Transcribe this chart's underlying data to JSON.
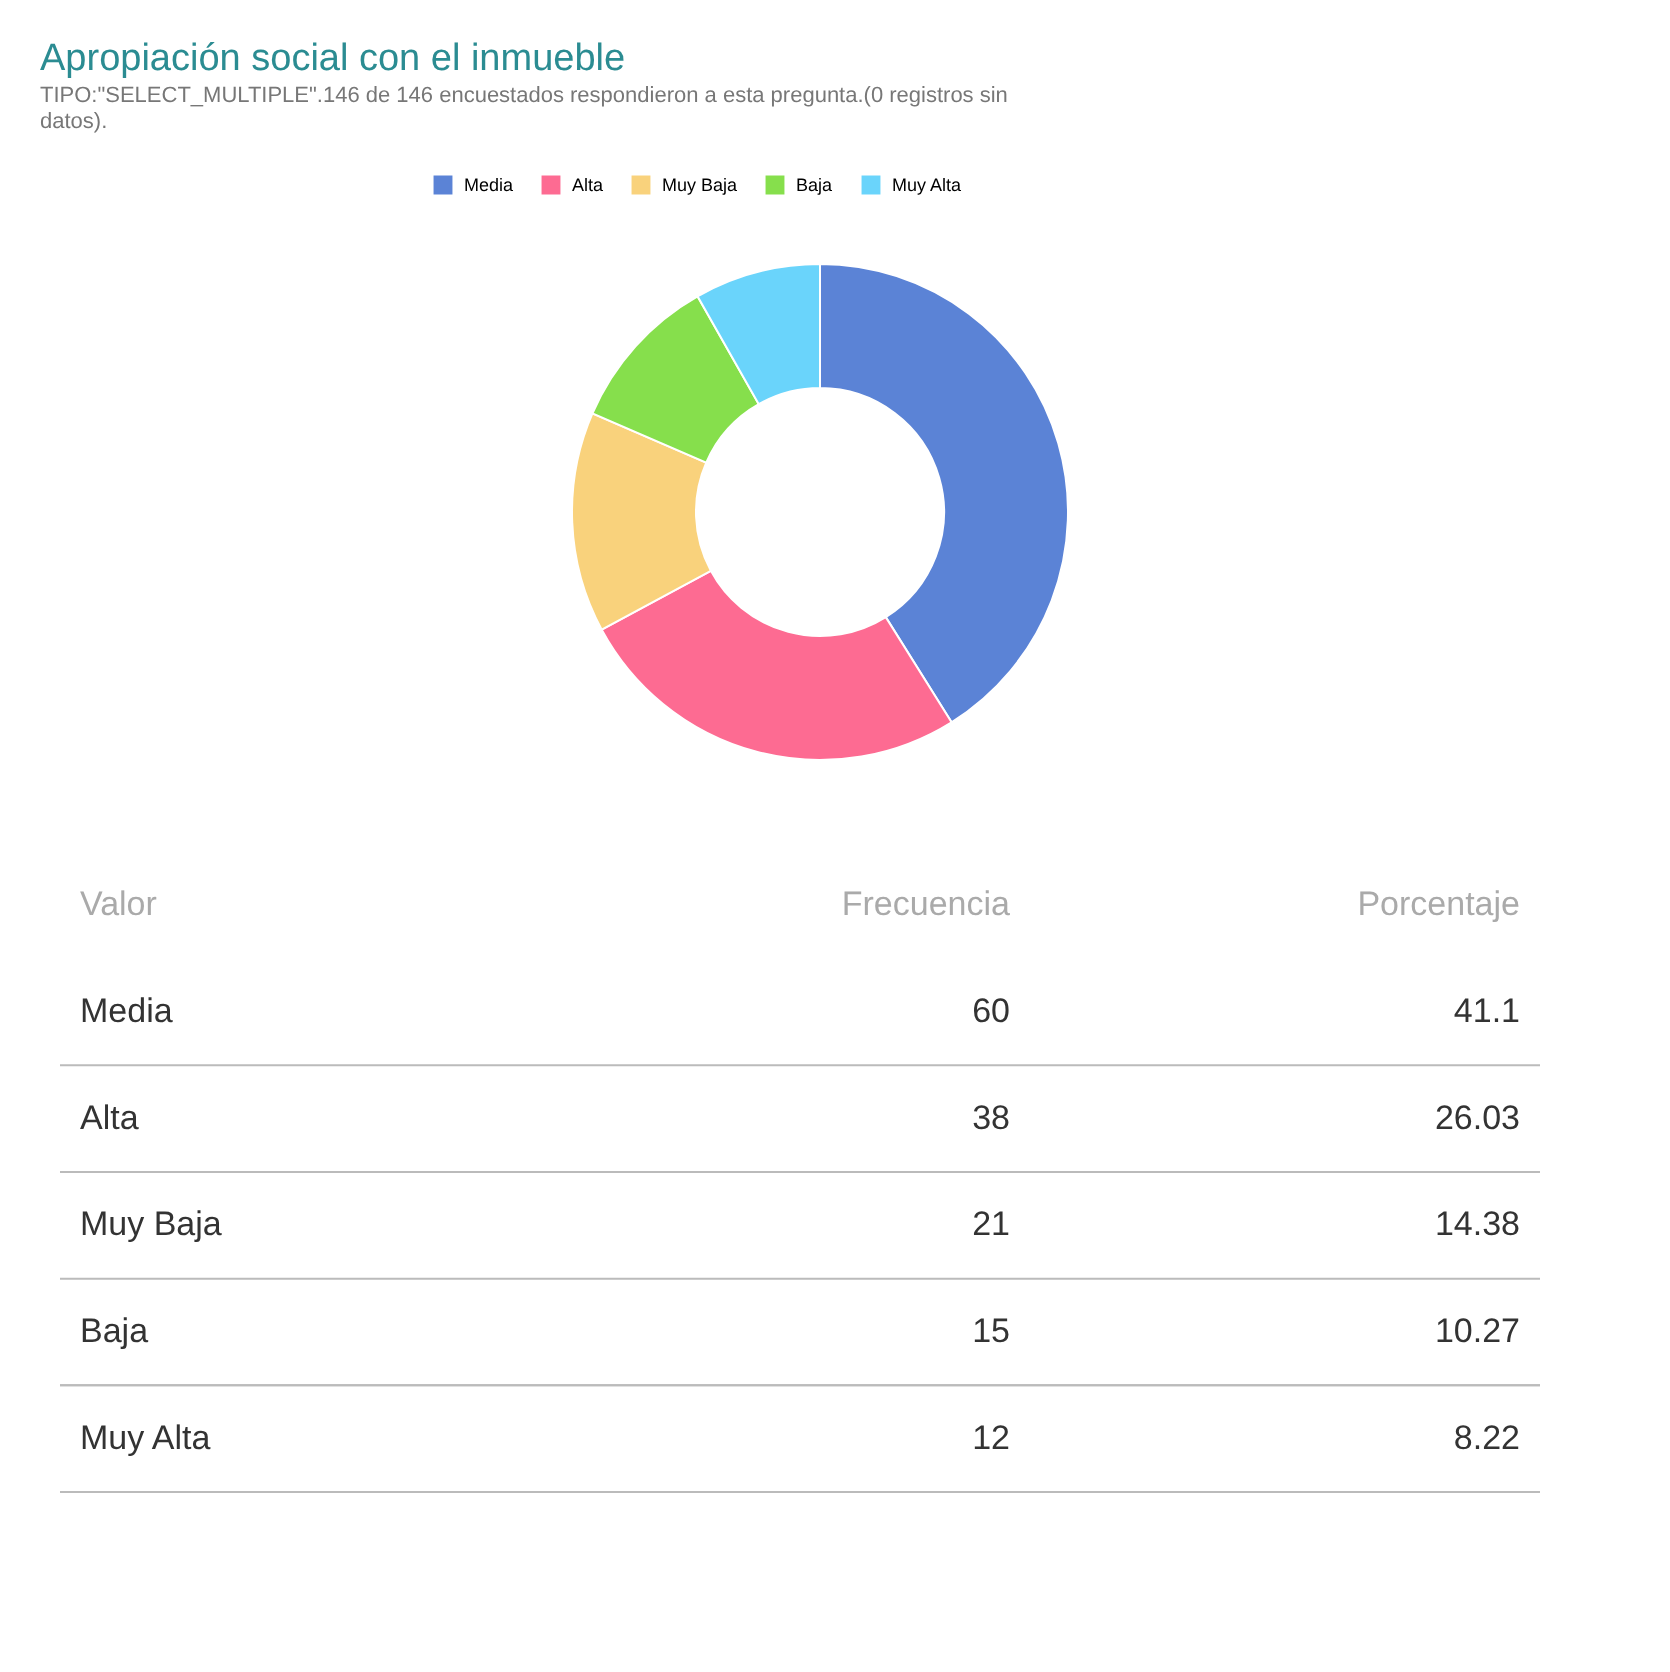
{
  "chart_data": {
    "type": "donut",
    "title": "Apropiación social con el inmueble",
    "subtitle": "TIPO:\"SELECT_MULTIPLE\".146 de 146 encuestados respondieron a esta pregunta.(0 registros sin datos).",
    "categories": [
      "Media",
      "Alta",
      "Muy Baja",
      "Baja",
      "Muy Alta"
    ],
    "values": [
      41.1,
      26.03,
      14.38,
      10.27,
      8.22
    ],
    "colors": [
      "#5b83d6",
      "#fd6b92",
      "#f9d27c",
      "#86df4c",
      "#6ad4fb"
    ],
    "legend": "top",
    "annotations": [
      "Valor",
      "Frecuencia",
      "Porcentaje",
      "60",
      "41.1",
      "38",
      "26.03",
      "21",
      "14.38",
      "15",
      "10.27",
      "12",
      "8.22"
    ]
  }
}
